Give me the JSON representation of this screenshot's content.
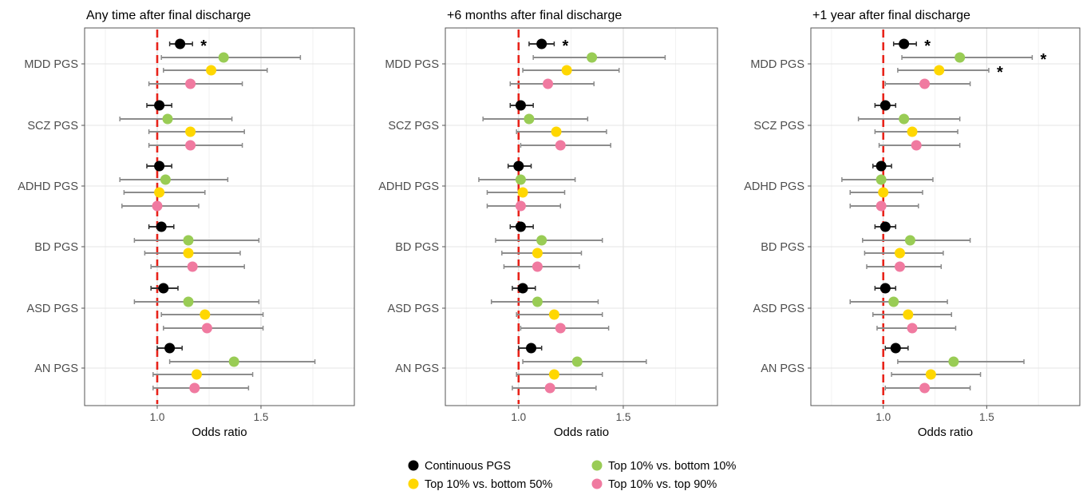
{
  "chart_data": {
    "type": "scatter",
    "subtype": "forest-plot",
    "reference_line": 1.0,
    "reference_line_color": "#e8231a",
    "xlim": [
      0.65,
      1.95
    ],
    "xticks": [
      "1.0",
      "1.5"
    ],
    "xtick_values": [
      1.0,
      1.5
    ],
    "xlabel": "Odds ratio",
    "grid": true,
    "legend_position": "bottom",
    "categories": [
      "MDD PGS",
      "SCZ PGS",
      "ADHD PGS",
      "BD PGS",
      "ASD PGS",
      "AN PGS"
    ],
    "series": [
      {
        "name": "Continuous PGS",
        "color": "#000000"
      },
      {
        "name": "Top 10% vs. bottom 10%",
        "color": "#99cc55"
      },
      {
        "name": "Top 10% vs. bottom 50%",
        "color": "#ffd700"
      },
      {
        "name": "Top 10% vs. top 90%",
        "color": "#f07aa0"
      }
    ],
    "legend_order": [
      0,
      1,
      2,
      3
    ],
    "panels": [
      {
        "title": "Any time after final discharge",
        "points": [
          [
            [
              1.11,
              1.06,
              1.17,
              true
            ],
            [
              1.32,
              1.02,
              1.69,
              false
            ],
            [
              1.26,
              1.03,
              1.53,
              false
            ],
            [
              1.16,
              0.96,
              1.41,
              false
            ]
          ],
          [
            [
              1.01,
              0.95,
              1.07,
              false
            ],
            [
              1.05,
              0.82,
              1.36,
              false
            ],
            [
              1.16,
              0.96,
              1.42,
              false
            ],
            [
              1.16,
              0.96,
              1.41,
              false
            ]
          ],
          [
            [
              1.01,
              0.95,
              1.07,
              false
            ],
            [
              1.04,
              0.82,
              1.34,
              false
            ],
            [
              1.01,
              0.84,
              1.23,
              false
            ],
            [
              1.0,
              0.83,
              1.2,
              false
            ]
          ],
          [
            [
              1.02,
              0.96,
              1.08,
              false
            ],
            [
              1.15,
              0.89,
              1.49,
              false
            ],
            [
              1.15,
              0.94,
              1.4,
              false
            ],
            [
              1.17,
              0.97,
              1.42,
              false
            ]
          ],
          [
            [
              1.03,
              0.97,
              1.1,
              false
            ],
            [
              1.15,
              0.89,
              1.49,
              false
            ],
            [
              1.23,
              1.02,
              1.51,
              false
            ],
            [
              1.24,
              1.03,
              1.51,
              false
            ]
          ],
          [
            [
              1.06,
              1.0,
              1.12,
              false
            ],
            [
              1.37,
              1.06,
              1.76,
              false
            ],
            [
              1.19,
              0.98,
              1.46,
              false
            ],
            [
              1.18,
              0.98,
              1.44,
              false
            ]
          ]
        ]
      },
      {
        "title": "+6 months after final discharge",
        "points": [
          [
            [
              1.11,
              1.05,
              1.17,
              true
            ],
            [
              1.35,
              1.07,
              1.7,
              false
            ],
            [
              1.23,
              1.02,
              1.48,
              false
            ],
            [
              1.14,
              0.96,
              1.36,
              false
            ]
          ],
          [
            [
              1.01,
              0.96,
              1.07,
              false
            ],
            [
              1.05,
              0.83,
              1.33,
              false
            ],
            [
              1.18,
              0.99,
              1.42,
              false
            ],
            [
              1.2,
              1.01,
              1.44,
              false
            ]
          ],
          [
            [
              1.0,
              0.95,
              1.06,
              false
            ],
            [
              1.01,
              0.81,
              1.27,
              false
            ],
            [
              1.02,
              0.85,
              1.22,
              false
            ],
            [
              1.01,
              0.85,
              1.2,
              false
            ]
          ],
          [
            [
              1.01,
              0.96,
              1.07,
              false
            ],
            [
              1.11,
              0.89,
              1.4,
              false
            ],
            [
              1.09,
              0.92,
              1.3,
              false
            ],
            [
              1.09,
              0.93,
              1.29,
              false
            ]
          ],
          [
            [
              1.02,
              0.97,
              1.08,
              false
            ],
            [
              1.09,
              0.87,
              1.38,
              false
            ],
            [
              1.17,
              0.99,
              1.4,
              false
            ],
            [
              1.2,
              1.01,
              1.43,
              false
            ]
          ],
          [
            [
              1.06,
              1.0,
              1.11,
              false
            ],
            [
              1.28,
              1.02,
              1.61,
              false
            ],
            [
              1.17,
              0.99,
              1.4,
              false
            ],
            [
              1.15,
              0.97,
              1.37,
              false
            ]
          ]
        ]
      },
      {
        "title": "+1 year after final discharge",
        "points": [
          [
            [
              1.1,
              1.05,
              1.16,
              true
            ],
            [
              1.37,
              1.09,
              1.72,
              true
            ],
            [
              1.27,
              1.07,
              1.51,
              true
            ],
            [
              1.2,
              1.01,
              1.42,
              false
            ]
          ],
          [
            [
              1.01,
              0.96,
              1.06,
              false
            ],
            [
              1.1,
              0.88,
              1.37,
              false
            ],
            [
              1.14,
              0.96,
              1.36,
              false
            ],
            [
              1.16,
              0.98,
              1.37,
              false
            ]
          ],
          [
            [
              0.99,
              0.95,
              1.04,
              false
            ],
            [
              0.99,
              0.8,
              1.24,
              false
            ],
            [
              1.0,
              0.84,
              1.19,
              false
            ],
            [
              0.99,
              0.84,
              1.17,
              false
            ]
          ],
          [
            [
              1.01,
              0.96,
              1.06,
              false
            ],
            [
              1.13,
              0.9,
              1.42,
              false
            ],
            [
              1.08,
              0.91,
              1.29,
              false
            ],
            [
              1.08,
              0.92,
              1.28,
              false
            ]
          ],
          [
            [
              1.01,
              0.96,
              1.06,
              false
            ],
            [
              1.05,
              0.84,
              1.31,
              false
            ],
            [
              1.12,
              0.95,
              1.33,
              false
            ],
            [
              1.14,
              0.97,
              1.35,
              false
            ]
          ],
          [
            [
              1.06,
              1.01,
              1.12,
              false
            ],
            [
              1.34,
              1.07,
              1.68,
              false
            ],
            [
              1.23,
              1.04,
              1.47,
              false
            ],
            [
              1.2,
              1.01,
              1.42,
              false
            ]
          ]
        ]
      }
    ]
  },
  "significance_marker": "*"
}
